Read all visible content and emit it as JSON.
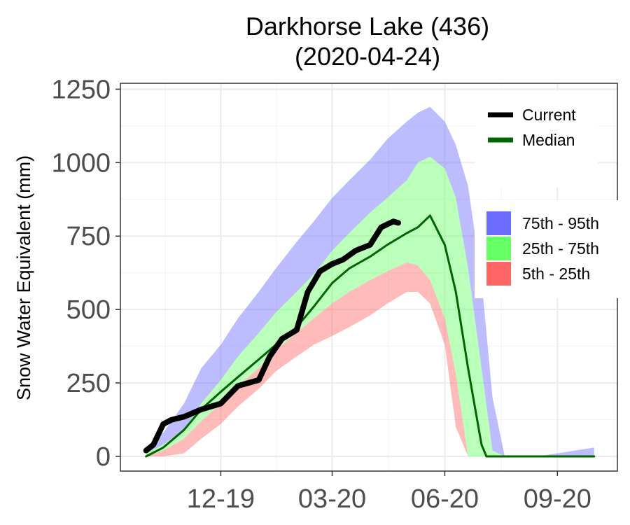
{
  "chart_data": {
    "type": "area",
    "title": [
      "Darkhorse Lake (436)",
      "(2020-04-24)"
    ],
    "ylabel": "Snow Water Equivalent (mm)",
    "xlabel": "",
    "ylim": [
      -50,
      1270
    ],
    "xlim": [
      "2019-09-10",
      "2020-10-20"
    ],
    "grid": true,
    "y_ticks": [
      0,
      250,
      500,
      750,
      1000,
      1250
    ],
    "y_tick_labels": [
      "0",
      "250",
      "500",
      "750",
      "1000",
      "1250"
    ],
    "x_ticks": [
      "2019-12-01",
      "2020-03-01",
      "2020-06-01",
      "2020-09-01"
    ],
    "x_tick_labels": [
      "12-19",
      "03-20",
      "06-20",
      "09-20"
    ],
    "legend_position": "right",
    "legend_lines": [
      {
        "name": "Current",
        "color": "#000000"
      },
      {
        "name": "Median",
        "color": "#006400"
      }
    ],
    "legend_fills": [
      {
        "name": "75th - 95th",
        "color": "#6b6bff"
      },
      {
        "name": "25th - 75th",
        "color": "#66ff66"
      },
      {
        "name": "5th - 25th",
        "color": "#ff6666"
      }
    ],
    "dates": [
      "2019-10-01",
      "2019-10-15",
      "2019-11-01",
      "2019-11-15",
      "2019-12-01",
      "2019-12-15",
      "2020-01-01",
      "2020-01-15",
      "2020-02-01",
      "2020-02-15",
      "2020-03-01",
      "2020-03-15",
      "2020-04-01",
      "2020-04-15",
      "2020-05-01",
      "2020-05-10",
      "2020-05-20",
      "2020-06-01",
      "2020-06-10",
      "2020-06-20",
      "2020-07-01",
      "2020-07-10",
      "2020-07-20",
      "2020-08-01",
      "2020-08-15",
      "2020-09-01",
      "2020-09-15",
      "2020-10-01"
    ],
    "bands": {
      "p95": [
        30,
        80,
        180,
        300,
        380,
        470,
        560,
        640,
        730,
        800,
        880,
        940,
        1010,
        1080,
        1140,
        1170,
        1190,
        1140,
        1060,
        920,
        600,
        200,
        0,
        0,
        0,
        10,
        20,
        30
      ],
      "p75": [
        10,
        40,
        90,
        180,
        260,
        340,
        420,
        490,
        560,
        620,
        700,
        760,
        830,
        880,
        940,
        1000,
        1020,
        980,
        880,
        640,
        300,
        20,
        0,
        0,
        0,
        0,
        0,
        0
      ],
      "p25": [
        0,
        20,
        60,
        120,
        180,
        240,
        300,
        360,
        420,
        470,
        520,
        560,
        600,
        630,
        660,
        650,
        600,
        470,
        280,
        0,
        0,
        0,
        0,
        0,
        0,
        0,
        0,
        0
      ],
      "p5": [
        0,
        0,
        10,
        60,
        110,
        170,
        230,
        290,
        340,
        380,
        410,
        440,
        480,
        520,
        560,
        560,
        520,
        380,
        100,
        0,
        0,
        0,
        0,
        0,
        0,
        0,
        0,
        0
      ]
    },
    "series": [
      {
        "name": "Median",
        "color": "#006400",
        "x": [
          "2019-10-01",
          "2019-10-15",
          "2019-11-01",
          "2019-11-15",
          "2019-12-01",
          "2019-12-15",
          "2020-01-01",
          "2020-01-15",
          "2020-02-01",
          "2020-02-15",
          "2020-03-01",
          "2020-03-15",
          "2020-04-01",
          "2020-04-15",
          "2020-05-01",
          "2020-05-10",
          "2020-05-20",
          "2020-06-01",
          "2020-06-10",
          "2020-06-20",
          "2020-07-01",
          "2020-07-05",
          "2020-07-10",
          "2020-10-01"
        ],
        "y": [
          0,
          30,
          90,
          160,
          220,
          270,
          330,
          380,
          440,
          510,
          590,
          640,
          680,
          720,
          760,
          780,
          820,
          720,
          560,
          300,
          40,
          0,
          0,
          0
        ]
      },
      {
        "name": "Current",
        "color": "#000000",
        "x": [
          "2019-10-01",
          "2019-10-07",
          "2019-10-15",
          "2019-10-22",
          "2019-11-01",
          "2019-11-15",
          "2019-12-01",
          "2019-12-15",
          "2020-01-01",
          "2020-01-10",
          "2020-01-20",
          "2020-02-01",
          "2020-02-10",
          "2020-02-20",
          "2020-03-01",
          "2020-03-10",
          "2020-03-20",
          "2020-04-01",
          "2020-04-10",
          "2020-04-15",
          "2020-04-20",
          "2020-04-24"
        ],
        "y": [
          20,
          40,
          110,
          125,
          135,
          160,
          180,
          240,
          260,
          340,
          400,
          430,
          560,
          630,
          655,
          670,
          700,
          720,
          780,
          790,
          800,
          795
        ]
      }
    ]
  }
}
